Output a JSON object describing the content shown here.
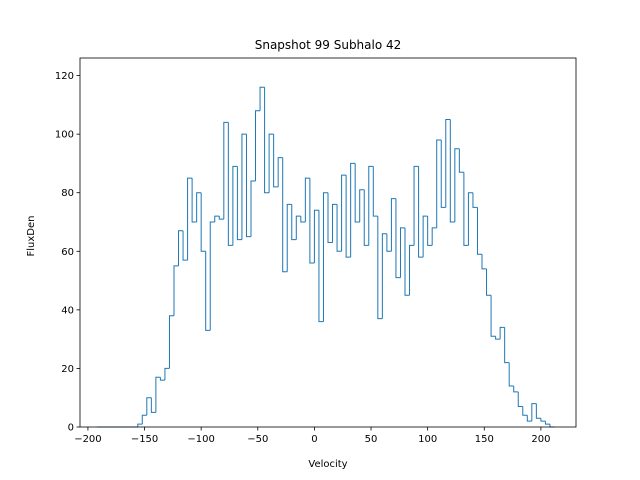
{
  "chart_data": {
    "type": "histogram",
    "title": "Snapshot 99 Subhalo 42",
    "xlabel": "Velocity",
    "ylabel": "FluxDen",
    "bins": [
      -192,
      -188,
      -184,
      -180,
      -176,
      -172,
      -168,
      -164,
      -160,
      -156,
      -152,
      -148,
      -144,
      -140,
      -136,
      -132,
      -128,
      -124,
      -120,
      -116,
      -112,
      -108,
      -104,
      -100,
      -96,
      -92,
      -88,
      -84,
      -80,
      -76,
      -72,
      -68,
      -64,
      -60,
      -56,
      -52,
      -48,
      -44,
      -40,
      -36,
      -32,
      -28,
      -24,
      -20,
      -16,
      -12,
      -8,
      -4,
      0,
      4,
      8,
      12,
      16,
      20,
      24,
      28,
      32,
      36,
      40,
      44,
      48,
      52,
      56,
      60,
      64,
      68,
      72,
      76,
      80,
      84,
      88,
      92,
      96,
      100,
      104,
      108,
      112,
      116,
      120,
      124,
      128,
      132,
      136,
      140,
      144,
      148,
      152,
      156,
      160,
      164,
      168,
      172,
      176,
      180,
      184,
      188,
      192,
      196,
      200,
      204,
      208,
      212
    ],
    "values": [
      0,
      0,
      0,
      0,
      0,
      0,
      0,
      0,
      0,
      1,
      4,
      10,
      5,
      17,
      16,
      20,
      38,
      55,
      67,
      57,
      85,
      70,
      80,
      60,
      33,
      70,
      72,
      71,
      104,
      62,
      89,
      64,
      100,
      65,
      84,
      108,
      116,
      80,
      100,
      82,
      92,
      53,
      76,
      64,
      72,
      70,
      85,
      56,
      74,
      36,
      80,
      63,
      76,
      60,
      86,
      58,
      90,
      70,
      81,
      62,
      89,
      72,
      37,
      66,
      60,
      78,
      51,
      68,
      45,
      62,
      89,
      58,
      72,
      62,
      68,
      98,
      75,
      105,
      70,
      95,
      87,
      62,
      80,
      75,
      59,
      54,
      45,
      31,
      30,
      34,
      22,
      14,
      12,
      7,
      4,
      2,
      8,
      3,
      2,
      1,
      0
    ],
    "color": "#1f77b4",
    "xlim": [
      -207,
      231
    ],
    "ylim": [
      0,
      126
    ],
    "xticks": [
      {
        "value": -200,
        "label": "−200"
      },
      {
        "value": -150,
        "label": "−150"
      },
      {
        "value": -100,
        "label": "−100"
      },
      {
        "value": -50,
        "label": "−50"
      },
      0,
      50,
      100,
      150,
      200
    ],
    "yticks": [
      0,
      20,
      40,
      60,
      80,
      100,
      120
    ]
  }
}
